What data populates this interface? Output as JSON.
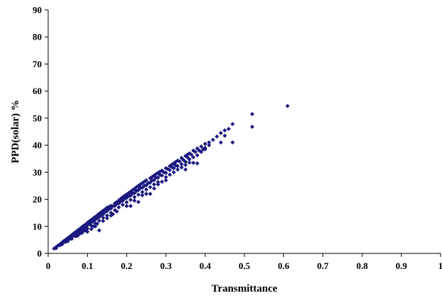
{
  "chart_data": {
    "type": "scatter",
    "xlabel": "Transmittance",
    "ylabel": "PPD(solar) %",
    "xlim": [
      0,
      1
    ],
    "ylim": [
      0,
      90
    ],
    "x_ticks": [
      "0",
      "0.1",
      "0.2",
      "0.3",
      "0.4",
      "0.5",
      "0.6",
      "0.7",
      "0.8",
      "0.9",
      "1"
    ],
    "y_ticks": [
      "0",
      "10",
      "20",
      "30",
      "40",
      "50",
      "60",
      "70",
      "80",
      "90"
    ],
    "grid": false,
    "legend": "none",
    "marker_color": "#1a1a80",
    "marker": "diamond",
    "series": [
      {
        "points": [
          [
            0.015,
            1.8
          ],
          [
            0.02,
            2.3
          ],
          [
            0.025,
            2.9
          ],
          [
            0.03,
            3.4
          ],
          [
            0.035,
            4.0
          ],
          [
            0.04,
            4.6
          ],
          [
            0.045,
            5.1
          ],
          [
            0.05,
            5.7
          ],
          [
            0.055,
            6.2
          ],
          [
            0.06,
            6.8
          ],
          [
            0.065,
            7.4
          ],
          [
            0.07,
            7.9
          ],
          [
            0.075,
            8.5
          ],
          [
            0.08,
            9.0
          ],
          [
            0.085,
            9.6
          ],
          [
            0.09,
            10.2
          ],
          [
            0.095,
            10.7
          ],
          [
            0.1,
            11.3
          ],
          [
            0.105,
            11.9
          ],
          [
            0.11,
            12.4
          ],
          [
            0.115,
            13.0
          ],
          [
            0.12,
            13.5
          ],
          [
            0.125,
            14.1
          ],
          [
            0.13,
            14.7
          ],
          [
            0.135,
            15.2
          ],
          [
            0.14,
            15.8
          ],
          [
            0.145,
            16.3
          ],
          [
            0.15,
            16.9
          ],
          [
            0.155,
            17.2
          ],
          [
            0.16,
            17.6
          ],
          [
            0.17,
            18.5
          ],
          [
            0.175,
            19.0
          ],
          [
            0.18,
            19.6
          ],
          [
            0.185,
            20.2
          ],
          [
            0.19,
            20.8
          ],
          [
            0.195,
            21.3
          ],
          [
            0.2,
            21.8
          ],
          [
            0.205,
            22.3
          ],
          [
            0.21,
            22.8
          ],
          [
            0.215,
            23.4
          ],
          [
            0.22,
            23.9
          ],
          [
            0.225,
            24.5
          ],
          [
            0.23,
            25.0
          ],
          [
            0.235,
            25.5
          ],
          [
            0.24,
            26.0
          ],
          [
            0.245,
            26.5
          ],
          [
            0.25,
            27.0
          ],
          [
            0.26,
            27.8
          ],
          [
            0.265,
            28.3
          ],
          [
            0.27,
            28.8
          ],
          [
            0.275,
            29.3
          ],
          [
            0.28,
            29.8
          ],
          [
            0.285,
            30.2
          ],
          [
            0.29,
            30.6
          ],
          [
            0.3,
            31.5
          ],
          [
            0.31,
            32.3
          ],
          [
            0.315,
            32.8
          ],
          [
            0.32,
            33.3
          ],
          [
            0.325,
            33.8
          ],
          [
            0.33,
            34.3
          ],
          [
            0.34,
            35.3
          ],
          [
            0.35,
            36.0
          ],
          [
            0.355,
            36.5
          ],
          [
            0.36,
            37.0
          ],
          [
            0.37,
            38.0
          ],
          [
            0.38,
            38.8
          ],
          [
            0.39,
            39.5
          ],
          [
            0.4,
            40.5
          ],
          [
            0.41,
            41.0
          ],
          [
            0.43,
            43.2
          ],
          [
            0.44,
            44.5
          ],
          [
            0.45,
            45.5
          ],
          [
            0.47,
            47.8
          ],
          [
            0.52,
            51.5
          ],
          [
            0.61,
            54.5
          ],
          [
            0.02,
            1.9
          ],
          [
            0.03,
            3.0
          ],
          [
            0.04,
            4.1
          ],
          [
            0.05,
            5.2
          ],
          [
            0.06,
            6.2
          ],
          [
            0.07,
            7.3
          ],
          [
            0.08,
            8.3
          ],
          [
            0.09,
            9.3
          ],
          [
            0.1,
            10.4
          ],
          [
            0.11,
            11.4
          ],
          [
            0.12,
            12.5
          ],
          [
            0.13,
            13.5
          ],
          [
            0.14,
            14.5
          ],
          [
            0.15,
            15.6
          ],
          [
            0.16,
            16.6
          ],
          [
            0.17,
            17.6
          ],
          [
            0.18,
            18.5
          ],
          [
            0.19,
            19.5
          ],
          [
            0.2,
            20.5
          ],
          [
            0.21,
            21.4
          ],
          [
            0.22,
            22.3
          ],
          [
            0.23,
            23.4
          ],
          [
            0.24,
            24.3
          ],
          [
            0.25,
            25.2
          ],
          [
            0.26,
            26.2
          ],
          [
            0.27,
            27.1
          ],
          [
            0.28,
            28.0
          ],
          [
            0.29,
            28.8
          ],
          [
            0.3,
            29.8
          ],
          [
            0.31,
            30.8
          ],
          [
            0.32,
            31.5
          ],
          [
            0.33,
            32.3
          ],
          [
            0.34,
            33.0
          ],
          [
            0.35,
            33.8
          ],
          [
            0.36,
            34.8
          ],
          [
            0.37,
            35.5
          ],
          [
            0.38,
            36.3
          ],
          [
            0.39,
            37.5
          ],
          [
            0.4,
            38.5
          ],
          [
            0.05,
            4.5
          ],
          [
            0.06,
            5.4
          ],
          [
            0.07,
            6.3
          ],
          [
            0.08,
            7.3
          ],
          [
            0.09,
            8.2
          ],
          [
            0.1,
            9.2
          ],
          [
            0.11,
            10.2
          ],
          [
            0.12,
            11.1
          ],
          [
            0.13,
            12.1
          ],
          [
            0.14,
            13.2
          ],
          [
            0.15,
            14.0
          ],
          [
            0.16,
            15.0
          ],
          [
            0.17,
            16.0
          ],
          [
            0.18,
            17.0
          ],
          [
            0.19,
            18.0
          ],
          [
            0.2,
            18.9
          ],
          [
            0.21,
            19.8
          ],
          [
            0.22,
            20.8
          ],
          [
            0.23,
            21.7
          ],
          [
            0.24,
            22.7
          ],
          [
            0.25,
            23.6
          ],
          [
            0.26,
            24.5
          ],
          [
            0.27,
            25.5
          ],
          [
            0.28,
            26.4
          ],
          [
            0.3,
            28.2
          ],
          [
            0.31,
            29.1
          ],
          [
            0.32,
            30.0
          ],
          [
            0.33,
            31.0
          ],
          [
            0.34,
            31.8
          ],
          [
            0.35,
            32.7
          ],
          [
            0.36,
            33.6
          ],
          [
            0.075,
            6.5
          ],
          [
            0.085,
            7.5
          ],
          [
            0.095,
            8.5
          ],
          [
            0.1,
            8.0
          ],
          [
            0.11,
            9.0
          ],
          [
            0.115,
            10.0
          ],
          [
            0.12,
            10.0
          ],
          [
            0.125,
            11.0
          ],
          [
            0.13,
            8.5
          ],
          [
            0.14,
            12.0
          ],
          [
            0.15,
            13.0
          ],
          [
            0.16,
            14.0
          ],
          [
            0.165,
            14.5
          ],
          [
            0.175,
            15.5
          ],
          [
            0.2,
            17.5
          ],
          [
            0.21,
            17.5
          ],
          [
            0.22,
            19.5
          ],
          [
            0.23,
            19.0
          ],
          [
            0.24,
            21.5
          ],
          [
            0.25,
            22.0
          ],
          [
            0.26,
            22.0
          ],
          [
            0.27,
            24.0
          ],
          [
            0.28,
            25.5
          ],
          [
            0.29,
            26.5
          ],
          [
            0.3,
            27.0
          ],
          [
            0.35,
            31.0
          ],
          [
            0.37,
            33.5
          ],
          [
            0.38,
            33.3
          ],
          [
            0.4,
            39.0
          ],
          [
            0.41,
            40.0
          ],
          [
            0.44,
            41.0
          ],
          [
            0.45,
            43.5
          ],
          [
            0.47,
            41.0
          ],
          [
            0.52,
            46.8
          ],
          [
            0.035,
            3.3
          ],
          [
            0.045,
            4.3
          ],
          [
            0.055,
            5.4
          ],
          [
            0.065,
            6.5
          ],
          [
            0.075,
            7.6
          ],
          [
            0.085,
            8.7
          ],
          [
            0.095,
            9.8
          ],
          [
            0.105,
            10.9
          ],
          [
            0.115,
            12.0
          ],
          [
            0.125,
            13.1
          ],
          [
            0.135,
            14.2
          ],
          [
            0.145,
            15.3
          ],
          [
            0.155,
            16.4
          ],
          [
            0.165,
            17.5
          ],
          [
            0.175,
            18.3
          ],
          [
            0.185,
            19.2
          ],
          [
            0.195,
            20.3
          ],
          [
            0.205,
            21.2
          ],
          [
            0.215,
            22.2
          ],
          [
            0.225,
            23.1
          ],
          [
            0.235,
            24.2
          ],
          [
            0.245,
            25.0
          ],
          [
            0.255,
            26.0
          ],
          [
            0.265,
            27.0
          ],
          [
            0.275,
            28.0
          ],
          [
            0.285,
            29.0
          ],
          [
            0.295,
            30.0
          ],
          [
            0.305,
            31.2
          ],
          [
            0.315,
            32.0
          ],
          [
            0.325,
            32.5
          ],
          [
            0.335,
            34.0
          ],
          [
            0.345,
            34.5
          ],
          [
            0.355,
            35.5
          ],
          [
            0.365,
            36.5
          ],
          [
            0.375,
            37.5
          ],
          [
            0.385,
            38.0
          ],
          [
            0.395,
            38.5
          ],
          [
            0.42,
            42.0
          ],
          [
            0.46,
            46.0
          ]
        ]
      }
    ]
  }
}
